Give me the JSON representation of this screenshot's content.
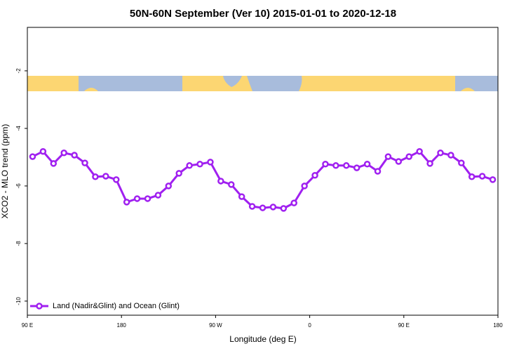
{
  "chart_data": {
    "type": "line",
    "title": "50N-60N September (Ver 10)   2015-01-01 to 2020-12-18",
    "x_label": "Longitude (deg E)",
    "y_label": "XCO2 - MLO trend (ppm)",
    "x": [
      95,
      105,
      115,
      125,
      135,
      145,
      155,
      165,
      175,
      185,
      195,
      205,
      215,
      225,
      235,
      245,
      255,
      265,
      275,
      285,
      295,
      305,
      315,
      325,
      335,
      345,
      355,
      365,
      375,
      385,
      395,
      405,
      415,
      425,
      435,
      445,
      455,
      465,
      475,
      485,
      495,
      505,
      515,
      525,
      535
    ],
    "series": [
      {
        "name": "Land (Nadir&Glint) and Ocean (Glint)",
        "color": "#a020f0",
        "values": [
          -4.98,
          -4.8,
          -5.22,
          -4.85,
          -4.93,
          -5.2,
          -5.68,
          -5.66,
          -5.78,
          -6.56,
          -6.44,
          -6.44,
          -6.32,
          -6.0,
          -5.56,
          -5.29,
          -5.24,
          -5.17,
          -5.83,
          -5.95,
          -6.37,
          -6.71,
          -6.76,
          -6.73,
          -6.78,
          -6.59,
          -6.0,
          -5.63,
          -5.24,
          -5.29,
          -5.29,
          -5.37,
          -5.24,
          -5.49,
          -4.98,
          -5.15,
          -4.98,
          -4.8,
          -5.22,
          -4.85,
          -4.93,
          -5.2,
          -5.68,
          -5.66,
          -5.78
        ]
      }
    ],
    "xlim": [
      90,
      540
    ],
    "xticks": [
      {
        "value": 90,
        "label": "90 E"
      },
      180,
      {
        "value": 270,
        "label": "90 W"
      },
      {
        "value": 360,
        "label": "0"
      },
      {
        "value": 450,
        "label": "90 E"
      },
      {
        "value": 540,
        "label": "180"
      }
    ],
    "ylim": [
      -10.49,
      -0.49
    ],
    "yticks": [
      -2,
      -4,
      -6,
      -8,
      -10
    ],
    "grid": false,
    "legend": "bottom left"
  }
}
